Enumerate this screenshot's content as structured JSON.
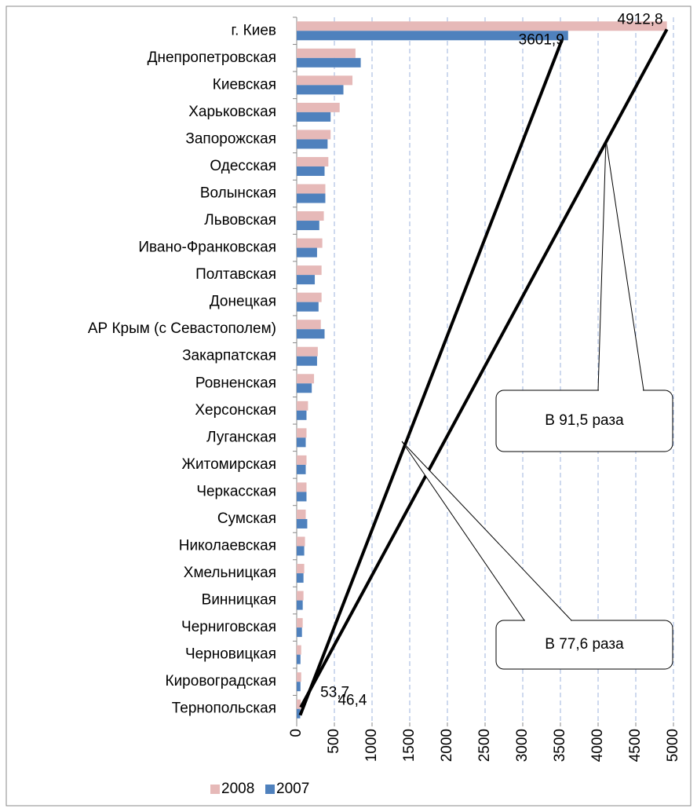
{
  "chart_data": {
    "type": "hbar",
    "categories": [
      "г. Киев",
      "Днепропетровская",
      "Киевская",
      "Харьковская",
      "Запорожская",
      "Одесская",
      "Волынская",
      "Львовская",
      "Ивано-Франковская",
      "Полтавская",
      "Донецкая",
      "АР Крым (с Севастополем)",
      "Закарпатская",
      "Ровненская",
      "Херсонская",
      "Луганская",
      "Житомирская",
      "Черкасская",
      "Сумская",
      "Николаевская",
      "Хмельницкая",
      "Винницкая",
      "Черниговская",
      "Черновицкая",
      "Кировоградская",
      "Тернопольская"
    ],
    "series": [
      {
        "name": "2008",
        "color": "#e6b9b8",
        "values": [
          4912.8,
          780,
          740,
          570,
          450,
          420,
          380,
          360,
          340,
          330,
          330,
          320,
          280,
          230,
          150,
          130,
          130,
          130,
          120,
          110,
          100,
          90,
          80,
          60,
          60,
          53.7
        ],
        "value_labels": [
          "4912,8",
          null,
          null,
          null,
          null,
          null,
          null,
          null,
          null,
          null,
          null,
          null,
          null,
          null,
          null,
          null,
          null,
          null,
          null,
          null,
          null,
          null,
          null,
          null,
          null,
          "53,7"
        ]
      },
      {
        "name": "2007",
        "color": "#4f81bd",
        "values": [
          3601.9,
          850,
          620,
          450,
          410,
          370,
          380,
          300,
          270,
          240,
          290,
          370,
          270,
          200,
          130,
          120,
          120,
          130,
          140,
          100,
          90,
          80,
          70,
          50,
          50,
          46.4
        ],
        "value_labels": [
          "3601,9",
          null,
          null,
          null,
          null,
          null,
          null,
          null,
          null,
          null,
          null,
          null,
          null,
          null,
          null,
          null,
          null,
          null,
          null,
          null,
          null,
          null,
          null,
          null,
          null,
          "46,4"
        ]
      }
    ],
    "xlim": [
      0,
      5000
    ],
    "xticks": [
      0,
      500,
      1000,
      1500,
      2000,
      2500,
      3000,
      3500,
      4000,
      4500,
      5000
    ],
    "grid": true,
    "legend": "bottom-left",
    "annotations": [
      "В 91,5 раза",
      "В 77,6 раза"
    ]
  }
}
